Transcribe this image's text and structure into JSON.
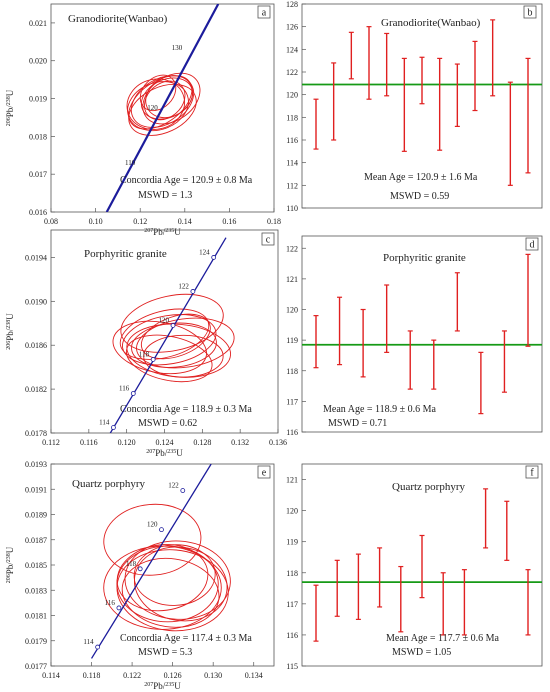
{
  "colors": {
    "ellipse": "#e02020",
    "concordia": "#1c1c9c",
    "marker": "#1c1c9c",
    "mean_line": "#169a16",
    "error_bar": "#e02020",
    "frame": "#555555"
  },
  "chart_data": [
    {
      "panel": "a",
      "type": "scatter",
      "title": "Granodiorite(Wanbao)",
      "xlabel": "207Pb/235U",
      "ylabel": "206Pb/238U",
      "xlim": [
        0.08,
        0.18
      ],
      "ylim": [
        0.016,
        0.0215
      ],
      "xticks": [
        "0.08",
        "0.10",
        "0.12",
        "0.14",
        "0.16",
        "0.18"
      ],
      "yticks": [
        "0.016",
        "0.017",
        "0.018",
        "0.019",
        "0.020",
        "0.021"
      ],
      "concordia_line": [
        [
          0.105,
          0.016
        ],
        [
          0.155,
          0.0215
        ]
      ],
      "age_labels": [
        {
          "label": "130",
          "x": 0.1365,
          "y": 0.02029
        },
        {
          "label": "120",
          "x": 0.1255,
          "y": 0.0187
        },
        {
          "label": "110",
          "x": 0.1155,
          "y": 0.01724
        }
      ],
      "ellipses": [
        {
          "cx": 0.13,
          "cy": 0.01892,
          "rx": 0.015,
          "ry": 0.0006,
          "rot": -30
        },
        {
          "cx": 0.129,
          "cy": 0.0189,
          "rx": 0.016,
          "ry": 0.00055,
          "rot": -35
        },
        {
          "cx": 0.132,
          "cy": 0.019,
          "rx": 0.012,
          "ry": 0.0005,
          "rot": -25
        },
        {
          "cx": 0.128,
          "cy": 0.0188,
          "rx": 0.014,
          "ry": 0.00062,
          "rot": -20
        },
        {
          "cx": 0.131,
          "cy": 0.01895,
          "rx": 0.01,
          "ry": 0.00045,
          "rot": -40
        },
        {
          "cx": 0.127,
          "cy": 0.01885,
          "rx": 0.013,
          "ry": 0.00066,
          "rot": -15
        },
        {
          "cx": 0.133,
          "cy": 0.01905,
          "rx": 0.011,
          "ry": 0.00052,
          "rot": -30
        },
        {
          "cx": 0.13,
          "cy": 0.0187,
          "rx": 0.016,
          "ry": 0.0006,
          "rot": -25
        },
        {
          "cx": 0.128,
          "cy": 0.01915,
          "rx": 0.009,
          "ry": 0.0004,
          "rot": -45
        },
        {
          "cx": 0.134,
          "cy": 0.019,
          "rx": 0.014,
          "ry": 0.00058,
          "rot": -35
        }
      ],
      "annotations": [
        "Concordia Age = 120.9  ± 0.8 Ma",
        "MSWD  =  1.3"
      ]
    },
    {
      "panel": "b",
      "type": "bar",
      "title": "Granodiorite(Wanbao)",
      "ylim": [
        110,
        128
      ],
      "yticks": [
        "110",
        "112",
        "114",
        "116",
        "118",
        "120",
        "122",
        "124",
        "126",
        "128"
      ],
      "mean": 120.9,
      "bars": [
        [
          115.2,
          119.6
        ],
        [
          116.0,
          122.8
        ],
        [
          121.4,
          125.5
        ],
        [
          119.6,
          126.0
        ],
        [
          119.9,
          125.4
        ],
        [
          115.0,
          123.2
        ],
        [
          119.2,
          123.3
        ],
        [
          115.1,
          123.2
        ],
        [
          117.2,
          122.7
        ],
        [
          118.6,
          124.7
        ],
        [
          119.9,
          126.6
        ],
        [
          112.0,
          121.1
        ],
        [
          113.1,
          123.2
        ]
      ],
      "annotations": [
        "Mean Age = 120.9  ± 1.6 Ma",
        "MSWD  =  0.59"
      ]
    },
    {
      "panel": "c",
      "type": "scatter",
      "title": "Porphyritic granite",
      "xlabel": "207Pb/235U",
      "ylabel": "206Pb/238U",
      "xlim": [
        0.112,
        0.136
      ],
      "ylim": [
        0.0178,
        0.01965
      ],
      "xticks": [
        "0.112",
        "0.116",
        "0.120",
        "0.124",
        "0.128",
        "0.132",
        "0.136"
      ],
      "yticks": [
        "0.0178",
        "0.0182",
        "0.0186",
        "0.0190",
        "0.0194"
      ],
      "concordia_points": [
        {
          "label": "114",
          "x": 0.1186,
          "y": 0.01785
        },
        {
          "label": "116",
          "x": 0.1207,
          "y": 0.01816
        },
        {
          "label": "118",
          "x": 0.1228,
          "y": 0.01847
        },
        {
          "label": "120",
          "x": 0.1249,
          "y": 0.01878
        },
        {
          "label": "122",
          "x": 0.127,
          "y": 0.01909
        },
        {
          "label": "124",
          "x": 0.1292,
          "y": 0.0194
        }
      ],
      "concordia_line": [
        [
          0.118,
          0.01776
        ],
        [
          0.1305,
          0.01958
        ]
      ],
      "ellipses": [
        {
          "cx": 0.1245,
          "cy": 0.01865,
          "rx": 0.005,
          "ry": 0.00022,
          "rot": -10
        },
        {
          "cx": 0.125,
          "cy": 0.0186,
          "rx": 0.0045,
          "ry": 0.0002,
          "rot": -5
        },
        {
          "cx": 0.1255,
          "cy": 0.01855,
          "rx": 0.0055,
          "ry": 0.00024,
          "rot": 5
        },
        {
          "cx": 0.124,
          "cy": 0.0187,
          "rx": 0.0048,
          "ry": 0.00021,
          "rot": -15
        },
        {
          "cx": 0.126,
          "cy": 0.0185,
          "rx": 0.0042,
          "ry": 0.00019,
          "rot": 0
        },
        {
          "cx": 0.1235,
          "cy": 0.01858,
          "rx": 0.005,
          "ry": 0.00023,
          "rot": 10
        },
        {
          "cx": 0.1252,
          "cy": 0.01868,
          "rx": 0.0038,
          "ry": 0.00018,
          "rot": -20
        },
        {
          "cx": 0.1262,
          "cy": 0.01862,
          "rx": 0.0052,
          "ry": 0.00022,
          "rot": -8
        },
        {
          "cx": 0.1245,
          "cy": 0.01848,
          "rx": 0.0046,
          "ry": 0.0002,
          "rot": 12
        },
        {
          "cx": 0.1248,
          "cy": 0.0188,
          "rx": 0.0055,
          "ry": 0.00025,
          "rot": -12
        }
      ],
      "annotations": [
        "Concordia Age = 118.9  ± 0.3 Ma",
        "MSWD  =  0.62"
      ]
    },
    {
      "panel": "d",
      "type": "bar",
      "title": "Porphyritic granite",
      "ylim": [
        116,
        122.4
      ],
      "yticks": [
        "116",
        "117",
        "118",
        "119",
        "120",
        "121",
        "122"
      ],
      "mean": 118.85,
      "bars": [
        [
          118.1,
          119.8
        ],
        [
          118.2,
          120.4
        ],
        [
          117.8,
          120.0
        ],
        [
          118.6,
          120.8
        ],
        [
          117.4,
          119.3
        ],
        [
          117.4,
          119.0
        ],
        [
          119.3,
          121.2
        ],
        [
          116.6,
          118.6
        ],
        [
          117.3,
          119.3
        ],
        [
          118.8,
          121.8
        ]
      ],
      "annotations": [
        "Mean Age = 118.9  ± 0.6 Ma",
        "MSWD  =  0.71"
      ]
    },
    {
      "panel": "e",
      "type": "scatter",
      "title": "Quartz porphyry",
      "xlabel": "207Pb/235U",
      "ylabel": "206Pb/238U",
      "xlim": [
        0.114,
        0.136
      ],
      "ylim": [
        0.0177,
        0.0193
      ],
      "xticks": [
        "0.114",
        "0.118",
        "0.122",
        "0.126",
        "0.130",
        "0.134"
      ],
      "yticks": [
        "0.0177",
        "0.0179",
        "0.0181",
        "0.0183",
        "0.0185",
        "0.0187",
        "0.0189",
        "0.0191",
        "0.0193"
      ],
      "concordia_points": [
        {
          "label": "114",
          "x": 0.1186,
          "y": 0.01785
        },
        {
          "label": "116",
          "x": 0.1207,
          "y": 0.01816
        },
        {
          "label": "118",
          "x": 0.1228,
          "y": 0.01847
        },
        {
          "label": "120",
          "x": 0.1249,
          "y": 0.01878
        },
        {
          "label": "122",
          "x": 0.127,
          "y": 0.01909
        }
      ],
      "concordia_line": [
        [
          0.118,
          0.01776
        ],
        [
          0.1298,
          0.0193
        ]
      ],
      "ellipses": [
        {
          "cx": 0.124,
          "cy": 0.0187,
          "rx": 0.0048,
          "ry": 0.00028,
          "rot": -5
        },
        {
          "cx": 0.1255,
          "cy": 0.01835,
          "rx": 0.005,
          "ry": 0.0003,
          "rot": 0
        },
        {
          "cx": 0.126,
          "cy": 0.0183,
          "rx": 0.0055,
          "ry": 0.00032,
          "rot": 5
        },
        {
          "cx": 0.125,
          "cy": 0.0184,
          "rx": 0.0045,
          "ry": 0.00026,
          "rot": -8
        },
        {
          "cx": 0.1265,
          "cy": 0.01838,
          "rx": 0.0052,
          "ry": 0.00031,
          "rot": 3
        },
        {
          "cx": 0.1258,
          "cy": 0.01828,
          "rx": 0.0048,
          "ry": 0.00027,
          "rot": 8
        },
        {
          "cx": 0.1262,
          "cy": 0.01842,
          "rx": 0.004,
          "ry": 0.00024,
          "rot": -3
        },
        {
          "cx": 0.125,
          "cy": 0.01832,
          "rx": 0.0058,
          "ry": 0.00033,
          "rot": 0
        },
        {
          "cx": 0.1268,
          "cy": 0.01835,
          "rx": 0.0046,
          "ry": 0.00029,
          "rot": 10
        }
      ],
      "annotations": [
        "Concordia Age = 117.4  ± 0.3 Ma",
        "MSWD  =  5.3"
      ]
    },
    {
      "panel": "f",
      "type": "bar",
      "title": "Quartz porphyry",
      "ylim": [
        115,
        121.5
      ],
      "yticks": [
        "115",
        "116",
        "117",
        "118",
        "119",
        "120",
        "121"
      ],
      "mean": 117.7,
      "bars": [
        [
          115.8,
          117.6
        ],
        [
          116.6,
          118.4
        ],
        [
          116.5,
          118.6
        ],
        [
          116.9,
          118.8
        ],
        [
          116.1,
          118.2
        ],
        [
          117.2,
          119.2
        ],
        [
          116.0,
          118.0
        ],
        [
          116.0,
          118.1
        ],
        [
          118.8,
          120.7
        ],
        [
          118.4,
          120.3
        ],
        [
          116.0,
          118.1
        ]
      ],
      "annotations": [
        "Mean Age = 117.7  ± 0.6 Ma",
        "MSWD  =  1.05"
      ]
    }
  ]
}
